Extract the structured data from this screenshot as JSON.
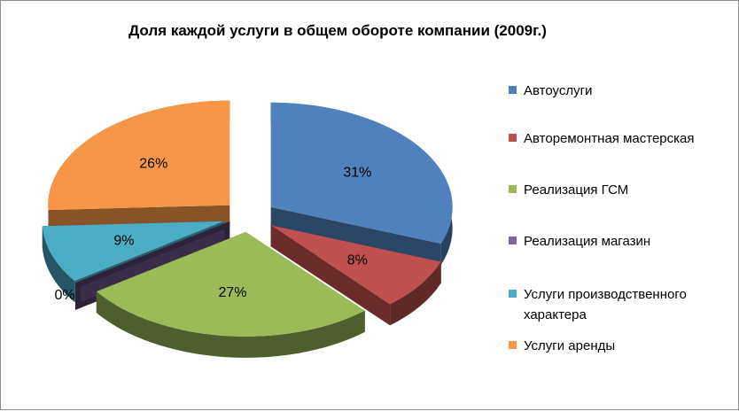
{
  "chart_data": {
    "type": "pie",
    "title": "Доля каждой услуги в общем обороте компании (2009г.)",
    "exploded": true,
    "style": "3d",
    "legend_position": "right",
    "slices": [
      {
        "label": "Автоуслуги",
        "value": 31,
        "data_label": "31%",
        "color": "#4F81BD"
      },
      {
        "label": "Авторемонтная мастерская",
        "value": 8,
        "data_label": "8%",
        "color": "#C0504D"
      },
      {
        "label": "Реализация ГСМ",
        "value": 27,
        "data_label": "27%",
        "color": "#9BBB59"
      },
      {
        "label": "Реализация магазин",
        "value": 0,
        "data_label": "0%",
        "color": "#8064A2"
      },
      {
        "label": "Услуги производственного характера",
        "value": 9,
        "data_label": "9%",
        "color": "#4BACC6"
      },
      {
        "label": "Услуги аренды",
        "value": 26,
        "data_label": "26%",
        "color": "#F79646"
      }
    ]
  }
}
